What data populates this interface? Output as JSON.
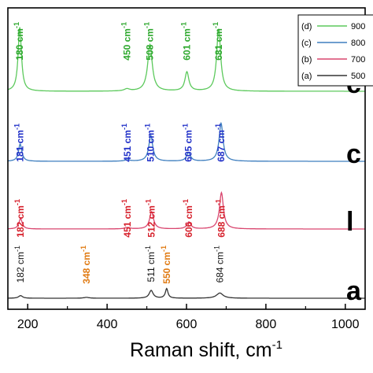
{
  "chart_data": {
    "type": "line",
    "xlabel": "Raman shift, cm",
    "xlabel_sup": "-1",
    "xlim": [
      150,
      1050
    ],
    "xticks": [
      200,
      400,
      600,
      800,
      1000
    ],
    "xtick_labels": [
      "200",
      "400",
      "600",
      "800",
      "1000"
    ],
    "grid": false,
    "legend_position": "top-right",
    "colors": {
      "d": "#5cc95c",
      "c": "#3f7fbf",
      "b": "#d9466f",
      "a": "#333333",
      "label_d": "#2ea82e",
      "label_c": "#1f2fc8",
      "label_b": "#d61f2a",
      "label_a": "#111111",
      "label_orange": "#e07a12"
    },
    "series": [
      {
        "id": "d",
        "legend_code": "(d)",
        "legend_value": "900",
        "side_label": "c",
        "baseline": 0.0,
        "peaks": [
          {
            "x": 180,
            "h": 3.7,
            "w": 5
          },
          {
            "x": 450,
            "h": 0.12,
            "w": 8
          },
          {
            "x": 508,
            "h": 2.7,
            "w": 7
          },
          {
            "x": 601,
            "h": 1.1,
            "w": 6
          },
          {
            "x": 681,
            "h": 3.6,
            "w": 6
          }
        ],
        "labels": [
          {
            "x": 180,
            "text": "180 cm",
            "color": "label_d"
          },
          {
            "x": 450,
            "text": "450 cm",
            "color": "label_d"
          },
          {
            "x": 508,
            "text": "508 cm",
            "color": "label_d"
          },
          {
            "x": 601,
            "text": "601 cm",
            "color": "label_d"
          },
          {
            "x": 681,
            "text": "681 cm",
            "color": "label_d"
          }
        ]
      },
      {
        "id": "c",
        "legend_code": "(c)",
        "legend_value": "800",
        "side_label": "c",
        "baseline": 0.0,
        "peaks": [
          {
            "x": 181,
            "h": 1.0,
            "w": 5
          },
          {
            "x": 451,
            "h": 0.08,
            "w": 8
          },
          {
            "x": 510,
            "h": 1.5,
            "w": 6
          },
          {
            "x": 605,
            "h": 0.5,
            "w": 6
          },
          {
            "x": 687,
            "h": 2.2,
            "w": 6
          }
        ],
        "labels": [
          {
            "x": 181,
            "text": "181 cm",
            "color": "label_c"
          },
          {
            "x": 451,
            "text": "451 cm",
            "color": "label_c"
          },
          {
            "x": 510,
            "text": "510 cm",
            "color": "label_c"
          },
          {
            "x": 605,
            "text": "605 cm",
            "color": "label_c"
          },
          {
            "x": 687,
            "text": "687 cm",
            "color": "label_c"
          }
        ]
      },
      {
        "id": "b",
        "legend_code": "(b)",
        "legend_value": "700",
        "side_label": "l",
        "baseline": 0.0,
        "peaks": [
          {
            "x": 182,
            "h": 0.6,
            "w": 5
          },
          {
            "x": 451,
            "h": 0.08,
            "w": 8
          },
          {
            "x": 512,
            "h": 1.0,
            "w": 6
          },
          {
            "x": 606,
            "h": 0.4,
            "w": 6
          },
          {
            "x": 688,
            "h": 2.1,
            "w": 6
          }
        ],
        "labels": [
          {
            "x": 182,
            "text": "182 cm",
            "color": "label_b"
          },
          {
            "x": 451,
            "text": "451 cm",
            "color": "label_b"
          },
          {
            "x": 512,
            "text": "512 cm",
            "color": "label_b"
          },
          {
            "x": 606,
            "text": "606 cm",
            "color": "label_b"
          },
          {
            "x": 688,
            "text": "688 cm",
            "color": "label_b"
          }
        ]
      },
      {
        "id": "a",
        "legend_code": "(a)",
        "legend_value": "500",
        "side_label": "a",
        "baseline": 0.0,
        "peaks": [
          {
            "x": 182,
            "h": 0.15,
            "w": 6
          },
          {
            "x": 348,
            "h": 0.05,
            "w": 8
          },
          {
            "x": 511,
            "h": 0.45,
            "w": 6
          },
          {
            "x": 550,
            "h": 0.55,
            "w": 4
          },
          {
            "x": 684,
            "h": 0.3,
            "w": 10
          }
        ],
        "labels": [
          {
            "x": 182,
            "text": "182 cm",
            "color": "label_a",
            "thin": true
          },
          {
            "x": 348,
            "text": "348 cm",
            "color": "label_orange"
          },
          {
            "x": 511,
            "text": "511 cm",
            "color": "label_a",
            "thin": true
          },
          {
            "x": 550,
            "text": "550 cm",
            "color": "label_orange"
          },
          {
            "x": 684,
            "text": "684 cm",
            "color": "label_a",
            "thin": true
          }
        ]
      }
    ]
  }
}
